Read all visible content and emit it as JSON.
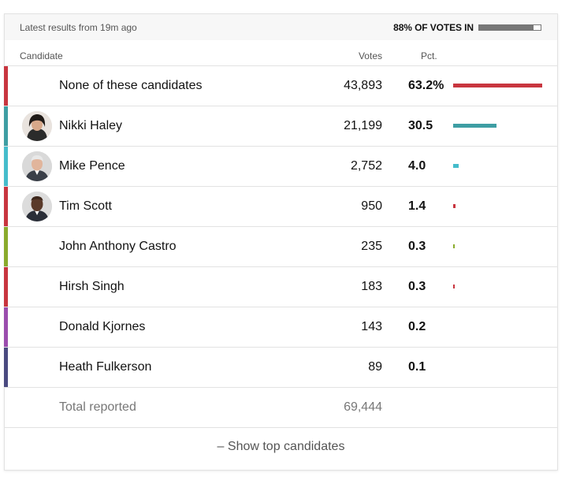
{
  "header": {
    "updated_text": "Latest results from 19m ago",
    "reporting_label": "88% OF VOTES IN",
    "reporting_fraction": 0.88
  },
  "columns": {
    "candidate": "Candidate",
    "votes": "Votes",
    "pct": "Pct."
  },
  "candidates": [
    {
      "name": "None of these candidates",
      "votes": "43,893",
      "pct": "63.2%",
      "pct_value": 63.2,
      "color": "#c8353f",
      "avatar": "none"
    },
    {
      "name": "Nikki Haley",
      "votes": "21,199",
      "pct": "30.5",
      "pct_value": 30.5,
      "color": "#3e9ea3",
      "avatar": "woman-portrait"
    },
    {
      "name": "Mike Pence",
      "votes": "2,752",
      "pct": "4.0",
      "pct_value": 4.0,
      "color": "#45bccb",
      "avatar": "man-portrait-gray"
    },
    {
      "name": "Tim Scott",
      "votes": "950",
      "pct": "1.4",
      "pct_value": 1.4,
      "color": "#c8353f",
      "avatar": "man-portrait-dark"
    },
    {
      "name": "John Anthony Castro",
      "votes": "235",
      "pct": "0.3",
      "pct_value": 0.3,
      "color": "#8aab2c",
      "avatar": "none"
    },
    {
      "name": "Hirsh Singh",
      "votes": "183",
      "pct": "0.3",
      "pct_value": 0.3,
      "color": "#c8353f",
      "avatar": "none"
    },
    {
      "name": "Donald Kjornes",
      "votes": "143",
      "pct": "0.2",
      "pct_value": 0.2,
      "color": "#9b4dae",
      "avatar": "none"
    },
    {
      "name": "Heath Fulkerson",
      "votes": "89",
      "pct": "0.1",
      "pct_value": 0.1,
      "color": "#4a4a80",
      "avatar": "none"
    }
  ],
  "total": {
    "label": "Total reported",
    "votes": "69,444"
  },
  "toggle_label": "– Show top candidates"
}
